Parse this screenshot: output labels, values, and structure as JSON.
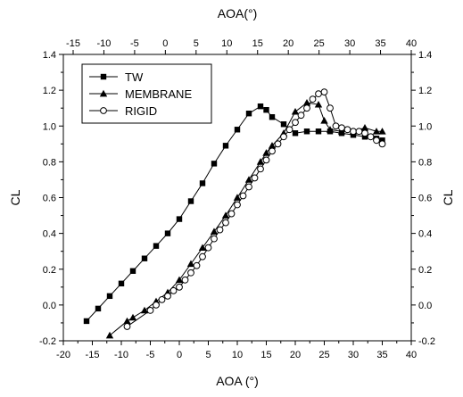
{
  "chart_data": {
    "type": "scatter",
    "xlabel_bottom": "AOA (°)",
    "xlabel_top": "AOA(°)",
    "ylabel_left": "CL",
    "ylabel_right": "CL",
    "xlim": [
      -20,
      40
    ],
    "ylim": [
      -0.2,
      1.4
    ],
    "xlim_top": [
      -15,
      40
    ],
    "xticks_bottom": [
      "-20",
      "-15",
      "-10",
      "-5",
      "0",
      "5",
      "10",
      "15",
      "20",
      "25",
      "30",
      "35",
      "40"
    ],
    "xticks_top": [
      "-15",
      "-10",
      "-5",
      "0",
      "5",
      "10",
      "15",
      "20",
      "25",
      "30",
      "35",
      "40"
    ],
    "yticks": [
      "-0.2",
      "0.0",
      "0.2",
      "0.4",
      "0.6",
      "0.8",
      "1.0",
      "1.2",
      "1.4"
    ],
    "legend_position": "top-left",
    "grid": false,
    "series": [
      {
        "name": "TW",
        "marker": "filled-square",
        "x": [
          -16,
          -14,
          -12,
          -10,
          -8,
          -6,
          -4,
          -2,
          0,
          2,
          4,
          6,
          8,
          10,
          12,
          14,
          15,
          16,
          18,
          20,
          22,
          24,
          26,
          28,
          30,
          32,
          34,
          35
        ],
        "y": [
          -0.09,
          -0.02,
          0.05,
          0.12,
          0.19,
          0.26,
          0.33,
          0.4,
          0.48,
          0.58,
          0.68,
          0.79,
          0.89,
          0.98,
          1.07,
          1.11,
          1.09,
          1.05,
          1.01,
          0.96,
          0.97,
          0.97,
          0.97,
          0.96,
          0.95,
          0.94,
          0.93,
          0.92
        ]
      },
      {
        "name": "MEMBRANE",
        "marker": "filled-triangle",
        "x": [
          -12,
          -9,
          -8,
          -6,
          -4,
          -2,
          0,
          2,
          4,
          6,
          8,
          10,
          12,
          14,
          15,
          16,
          18,
          20,
          22,
          24,
          25,
          26,
          28,
          30,
          32,
          34,
          35
        ],
        "y": [
          -0.17,
          -0.09,
          -0.07,
          -0.03,
          0.02,
          0.07,
          0.14,
          0.23,
          0.32,
          0.41,
          0.5,
          0.6,
          0.7,
          0.8,
          0.85,
          0.89,
          0.96,
          1.08,
          1.13,
          1.12,
          1.03,
          0.98,
          0.97,
          0.97,
          0.99,
          0.97,
          0.97
        ]
      },
      {
        "name": "RIGID",
        "marker": "open-circle",
        "x": [
          -9,
          -5,
          -4,
          -3,
          -2,
          -1,
          0,
          1,
          2,
          3,
          4,
          5,
          6,
          7,
          8,
          9,
          10,
          11,
          12,
          13,
          14,
          15,
          16,
          17,
          18,
          19,
          20,
          21,
          22,
          23,
          24,
          25,
          26,
          27,
          28,
          29,
          30,
          31,
          32,
          33,
          34,
          35
        ],
        "y": [
          -0.12,
          -0.03,
          0.0,
          0.03,
          0.05,
          0.08,
          0.1,
          0.14,
          0.18,
          0.22,
          0.27,
          0.32,
          0.37,
          0.42,
          0.46,
          0.51,
          0.56,
          0.61,
          0.66,
          0.71,
          0.76,
          0.81,
          0.86,
          0.9,
          0.94,
          0.98,
          1.02,
          1.06,
          1.1,
          1.15,
          1.18,
          1.19,
          1.1,
          1.0,
          0.99,
          0.98,
          0.97,
          0.97,
          0.96,
          0.94,
          0.92,
          0.9
        ]
      }
    ]
  },
  "colors": {
    "axis": "#000000",
    "marker": "#000000",
    "background": "#ffffff"
  }
}
